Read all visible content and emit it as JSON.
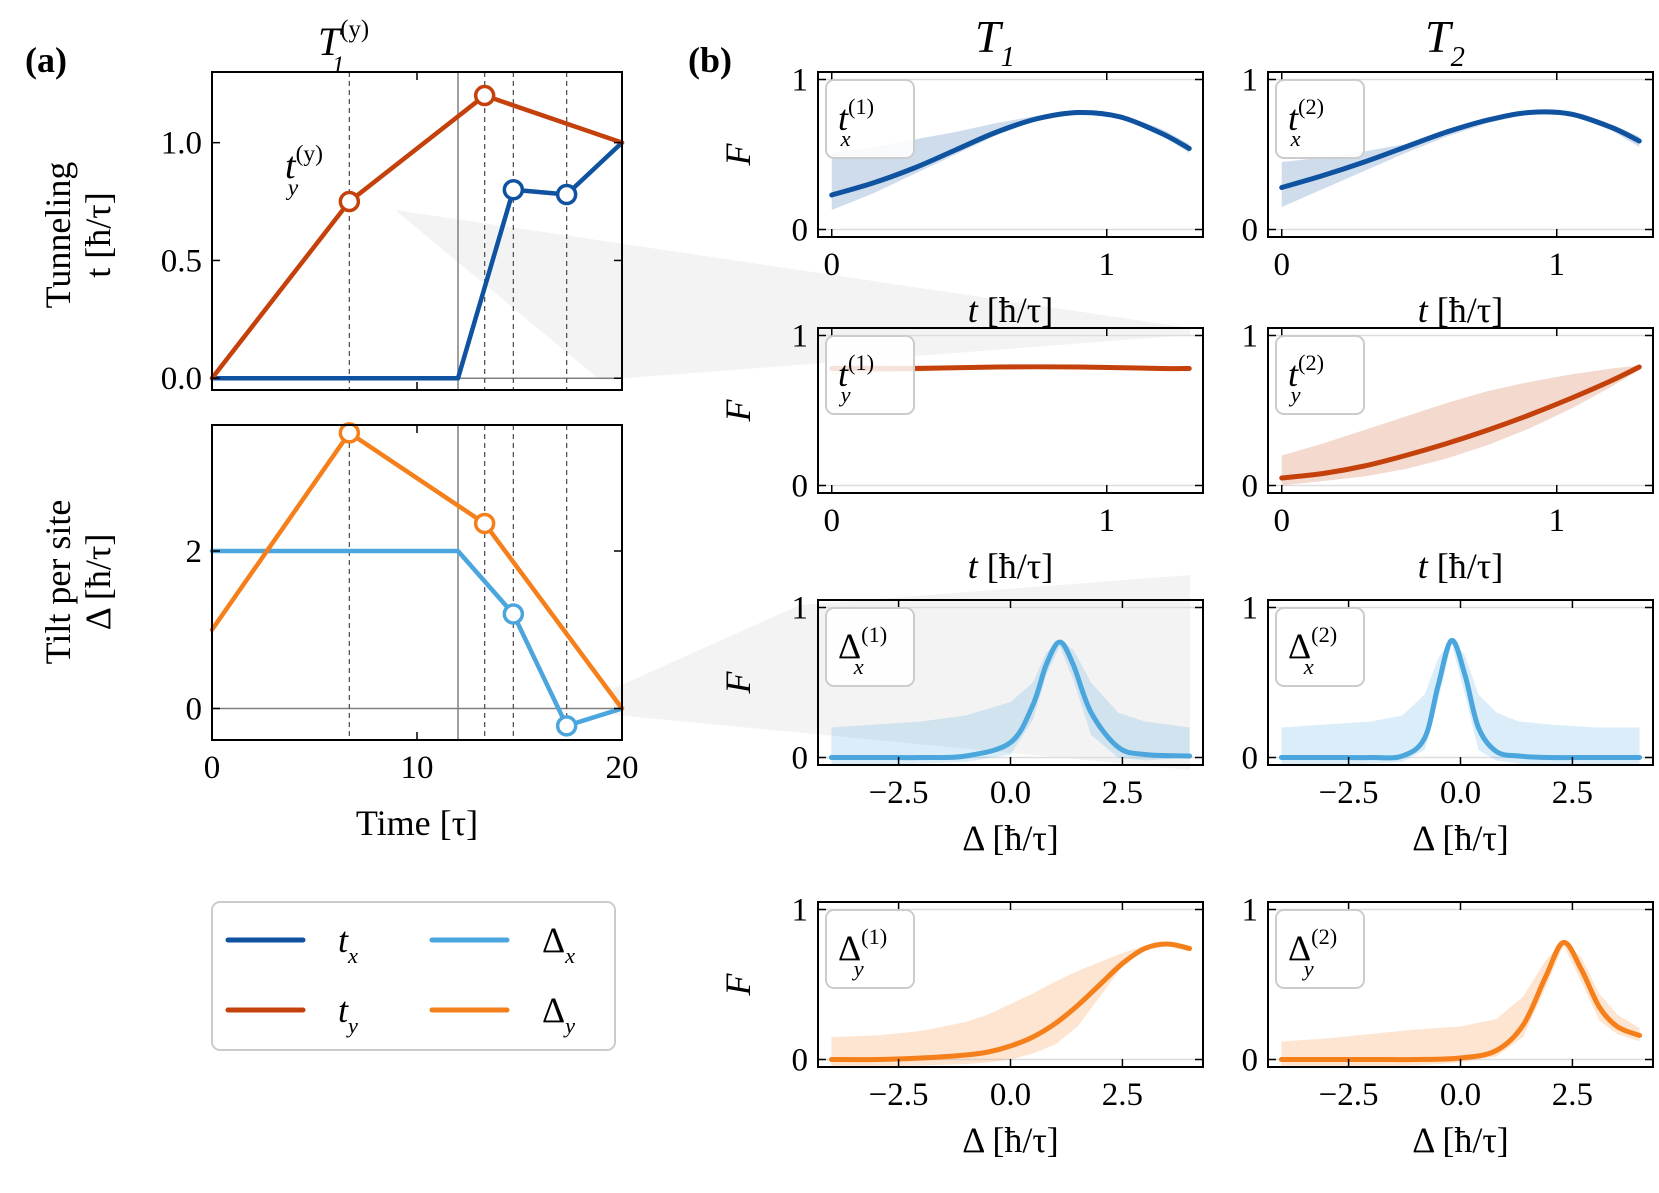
{
  "panel_labels": {
    "a": "(a)",
    "b": "(b)"
  },
  "column_headers": [
    "T",
    "T"
  ],
  "column_header_subs": [
    "1",
    "2"
  ],
  "marker_label": {
    "base": "T",
    "sub": "1",
    "sup": "(y)"
  },
  "colors": {
    "tx": "#0e52a0",
    "ty": "#c4410b",
    "dx": "#4aa6dc",
    "dy": "#f57f1a",
    "grid": "#808080",
    "dash": "#555555"
  },
  "chart_data": [
    {
      "id": "a-top",
      "type": "line",
      "xlabel": "",
      "ylabel_line1": "Tunneling",
      "ylabel_line2": "t [ħ/τ]",
      "xlim": [
        0,
        20
      ],
      "ylim": [
        -0.05,
        1.3
      ],
      "yticks": [
        0,
        0.5,
        1.0
      ],
      "ytick_labels": [
        "0.0",
        "0.5",
        "1.0"
      ],
      "vlines_dashed": [
        6.7,
        13.3,
        14.7,
        17.3
      ],
      "vline_solid": 12,
      "annotation": {
        "base": "t",
        "sub": "y",
        "sup": "(y)"
      },
      "series": [
        {
          "name": "t_x",
          "color_key": "tx",
          "x": [
            0,
            12,
            14.7,
            17.3,
            20
          ],
          "y": [
            0,
            0,
            0.8,
            0.78,
            1.0
          ],
          "markers": [
            14.7,
            17.3
          ]
        },
        {
          "name": "t_y",
          "color_key": "ty",
          "x": [
            0,
            6.7,
            13.3,
            20
          ],
          "y": [
            0,
            0.75,
            1.2,
            1.0
          ],
          "markers": [
            6.7,
            13.3
          ]
        }
      ]
    },
    {
      "id": "a-bottom",
      "type": "line",
      "xlabel": "Time [τ]",
      "ylabel_line1": "Tilt per site",
      "ylabel_line2": "Δ [ħ/τ]",
      "xlim": [
        0,
        20
      ],
      "ylim": [
        -0.4,
        3.6
      ],
      "xticks": [
        0,
        10,
        20
      ],
      "xtick_labels": [
        "0",
        "10",
        "20"
      ],
      "yticks": [
        0,
        2
      ],
      "ytick_labels": [
        "0",
        "2"
      ],
      "vlines_dashed": [
        6.7,
        13.3,
        14.7,
        17.3
      ],
      "vline_solid": 12,
      "series": [
        {
          "name": "Δ_x",
          "color_key": "dx",
          "x": [
            0,
            12,
            14.7,
            17.3,
            20
          ],
          "y": [
            2,
            2,
            1.2,
            -0.22,
            0
          ],
          "markers": [
            14.7,
            17.3
          ]
        },
        {
          "name": "Δ_y",
          "color_key": "dy",
          "x": [
            0,
            6.7,
            13.3,
            20
          ],
          "y": [
            1.0,
            3.5,
            2.35,
            0
          ],
          "markers": [
            6.7,
            13.3
          ]
        }
      ]
    },
    {
      "id": "b-grid",
      "type": "line",
      "ylabel": "F",
      "ylim": [
        -0.05,
        1.05
      ],
      "yticks": [
        0,
        1
      ],
      "ytick_labels": [
        "0",
        "1"
      ],
      "t_axis": {
        "xlabel": "t [ħ/τ]",
        "xlim": [
          -0.05,
          1.35
        ],
        "xticks": [
          0,
          1
        ],
        "xtick_labels": [
          "0",
          "1"
        ]
      },
      "delta_axis": {
        "xlabel": "Δ [ħ/τ]",
        "xlim": [
          -4.3,
          4.3
        ],
        "xticks": [
          -2.5,
          0,
          2.5
        ],
        "xtick_labels": [
          "−2.5",
          "0.0",
          "2.5"
        ]
      },
      "subplots": [
        {
          "row": 0,
          "col": 0,
          "axis": "t",
          "color_key": "tx",
          "label": {
            "base": "t",
            "sub": "x",
            "sup": "(1)"
          },
          "x": [
            0,
            0.15,
            0.3,
            0.45,
            0.6,
            0.75,
            0.9,
            1.05,
            1.2,
            1.3
          ],
          "y": [
            0.23,
            0.31,
            0.41,
            0.53,
            0.65,
            0.74,
            0.78,
            0.75,
            0.64,
            0.54
          ],
          "band_lo": [
            0.13,
            0.24,
            0.37,
            0.5,
            0.63,
            0.73,
            0.77,
            0.74,
            0.63,
            0.51
          ],
          "band_hi": [
            0.51,
            0.55,
            0.6,
            0.65,
            0.71,
            0.76,
            0.79,
            0.77,
            0.67,
            0.57
          ]
        },
        {
          "row": 0,
          "col": 1,
          "axis": "t",
          "color_key": "tx",
          "label": {
            "base": "t",
            "sub": "x",
            "sup": "(2)"
          },
          "x": [
            0,
            0.15,
            0.3,
            0.45,
            0.6,
            0.75,
            0.9,
            1.05,
            1.2,
            1.3
          ],
          "y": [
            0.28,
            0.36,
            0.45,
            0.55,
            0.65,
            0.73,
            0.78,
            0.77,
            0.68,
            0.59
          ],
          "band_lo": [
            0.15,
            0.27,
            0.39,
            0.51,
            0.62,
            0.71,
            0.77,
            0.76,
            0.66,
            0.55
          ],
          "band_hi": [
            0.45,
            0.48,
            0.52,
            0.57,
            0.67,
            0.75,
            0.79,
            0.78,
            0.7,
            0.62
          ]
        },
        {
          "row": 1,
          "col": 0,
          "axis": "t",
          "color_key": "ty",
          "label": {
            "base": "t",
            "sub": "y",
            "sup": "(1)"
          },
          "x": [
            0,
            0.3,
            0.6,
            0.9,
            1.2,
            1.3
          ],
          "y": [
            0.78,
            0.78,
            0.79,
            0.79,
            0.78,
            0.78
          ],
          "band_lo": [
            0.74,
            0.76,
            0.78,
            0.78,
            0.77,
            0.77
          ],
          "band_hi": [
            0.81,
            0.8,
            0.8,
            0.8,
            0.79,
            0.79
          ]
        },
        {
          "row": 1,
          "col": 1,
          "axis": "t",
          "color_key": "ty",
          "label": {
            "base": "t",
            "sub": "y",
            "sup": "(2)"
          },
          "x": [
            0,
            0.15,
            0.3,
            0.45,
            0.6,
            0.75,
            0.9,
            1.05,
            1.2,
            1.3
          ],
          "y": [
            0.05,
            0.08,
            0.13,
            0.2,
            0.28,
            0.37,
            0.47,
            0.58,
            0.7,
            0.79
          ],
          "band_lo": [
            0.0,
            0.03,
            0.06,
            0.11,
            0.18,
            0.27,
            0.38,
            0.51,
            0.66,
            0.77
          ],
          "band_hi": [
            0.2,
            0.28,
            0.37,
            0.46,
            0.55,
            0.63,
            0.69,
            0.74,
            0.78,
            0.8
          ]
        },
        {
          "row": 2,
          "col": 0,
          "axis": "delta",
          "color_key": "dx",
          "label": {
            "base": "Δ",
            "sub": "x",
            "sup": "(1)"
          },
          "x": [
            -4,
            -3,
            -2,
            -1,
            0,
            0.5,
            0.8,
            1.1,
            1.4,
            1.8,
            2.4,
            3,
            4
          ],
          "y": [
            0,
            0,
            0,
            0.01,
            0.1,
            0.35,
            0.62,
            0.77,
            0.62,
            0.3,
            0.07,
            0.02,
            0.01
          ],
          "band_lo": [
            -0.05,
            -0.05,
            -0.04,
            -0.03,
            0.02,
            0.25,
            0.55,
            0.74,
            0.52,
            0.15,
            0.0,
            -0.02,
            0.0
          ],
          "band_hi": [
            0.2,
            0.22,
            0.24,
            0.28,
            0.37,
            0.5,
            0.7,
            0.78,
            0.72,
            0.5,
            0.3,
            0.24,
            0.2
          ]
        },
        {
          "row": 2,
          "col": 1,
          "axis": "delta",
          "color_key": "dx",
          "label": {
            "base": "Δ",
            "sub": "x",
            "sup": "(2)"
          },
          "x": [
            -4,
            -3,
            -2,
            -1.3,
            -0.8,
            -0.5,
            -0.2,
            0.1,
            0.4,
            0.8,
            1.3,
            2,
            3,
            4
          ],
          "y": [
            0,
            0,
            0,
            0.01,
            0.13,
            0.48,
            0.78,
            0.55,
            0.2,
            0.04,
            0.01,
            0,
            0,
            0
          ],
          "band_lo": [
            -0.05,
            -0.05,
            -0.04,
            -0.03,
            0.05,
            0.38,
            0.76,
            0.42,
            0.05,
            -0.02,
            -0.04,
            -0.05,
            -0.05,
            -0.05
          ],
          "band_hi": [
            0.2,
            0.22,
            0.24,
            0.28,
            0.42,
            0.66,
            0.79,
            0.68,
            0.42,
            0.3,
            0.24,
            0.22,
            0.2,
            0.2
          ]
        },
        {
          "row": 3,
          "col": 0,
          "axis": "delta",
          "color_key": "dy",
          "label": {
            "base": "Δ",
            "sub": "y",
            "sup": "(1)"
          },
          "x": [
            -4,
            -3,
            -2,
            -1,
            -0.5,
            0,
            0.5,
            1,
            1.5,
            2,
            2.5,
            3,
            3.5,
            4
          ],
          "y": [
            0,
            0,
            0.01,
            0.03,
            0.05,
            0.09,
            0.15,
            0.24,
            0.36,
            0.5,
            0.64,
            0.74,
            0.77,
            0.74
          ],
          "band_lo": [
            -0.05,
            -0.05,
            -0.04,
            -0.03,
            -0.02,
            0.0,
            0.04,
            0.1,
            0.22,
            0.42,
            0.62,
            0.73,
            0.76,
            0.72
          ],
          "band_hi": [
            0.15,
            0.16,
            0.19,
            0.25,
            0.3,
            0.37,
            0.44,
            0.52,
            0.59,
            0.65,
            0.71,
            0.76,
            0.78,
            0.76
          ]
        },
        {
          "row": 3,
          "col": 1,
          "axis": "delta",
          "color_key": "dy",
          "label": {
            "base": "Δ",
            "sub": "y",
            "sup": "(2)"
          },
          "x": [
            -4,
            -3,
            -2,
            -1,
            0,
            0.8,
            1.4,
            1.9,
            2.3,
            2.7,
            3.1,
            3.5,
            4
          ],
          "y": [
            0,
            0,
            0,
            0,
            0.01,
            0.06,
            0.23,
            0.55,
            0.78,
            0.6,
            0.35,
            0.22,
            0.16
          ],
          "band_lo": [
            -0.05,
            -0.05,
            -0.05,
            -0.04,
            -0.02,
            0.02,
            0.15,
            0.48,
            0.76,
            0.52,
            0.26,
            0.17,
            0.12
          ],
          "band_hi": [
            0.12,
            0.14,
            0.17,
            0.2,
            0.22,
            0.27,
            0.42,
            0.66,
            0.79,
            0.68,
            0.44,
            0.3,
            0.21
          ]
        }
      ]
    }
  ],
  "legend": [
    {
      "name_base": "t",
      "name_sub": "x",
      "color_key": "tx"
    },
    {
      "name_base": "Δ",
      "name_sub": "x",
      "color_key": "dx"
    },
    {
      "name_base": "t",
      "name_sub": "y",
      "color_key": "ty"
    },
    {
      "name_base": "Δ",
      "name_sub": "y",
      "color_key": "dy"
    }
  ]
}
